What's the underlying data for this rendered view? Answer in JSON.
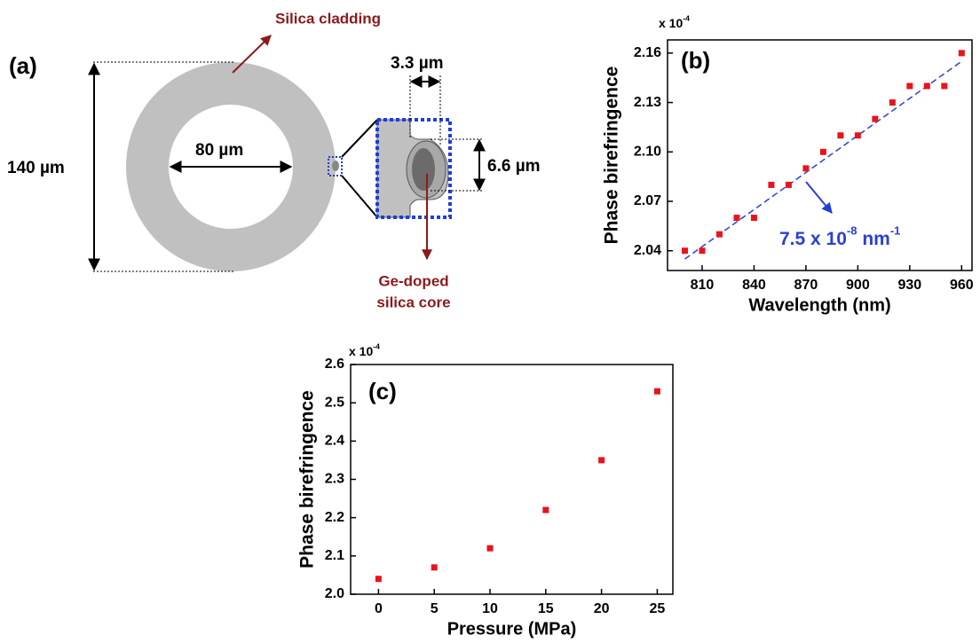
{
  "diagram": {
    "panel_label": "(a)",
    "cladding_label": "Silica cladding",
    "outer_diameter": "140 µm",
    "inner_diameter": "80 µm",
    "core_width": "3.3 µm",
    "core_height": "6.6 µm",
    "core_label": [
      "Ge-doped",
      "silica core"
    ]
  },
  "chart_data": [
    {
      "type": "scatter",
      "panel_label": "(b)",
      "y_label": "Phase birefringence",
      "x_label": "Wavelength (nm)",
      "y_multiplier": [
        "x 10",
        "-4"
      ],
      "x": [
        800,
        810,
        820,
        830,
        840,
        850,
        860,
        870,
        880,
        890,
        900,
        910,
        920,
        930,
        940,
        950,
        960
      ],
      "series": [
        {
          "color": "#e8141c",
          "values": [
            2.04,
            2.04,
            2.05,
            2.06,
            2.06,
            2.08,
            2.08,
            2.09,
            2.1,
            2.11,
            2.11,
            2.12,
            2.13,
            2.14,
            2.14,
            2.14,
            2.16
          ]
        }
      ],
      "fit": {
        "color": "#2a3fd8",
        "x": [
          800,
          960
        ],
        "y": [
          2.035,
          2.155
        ]
      },
      "annotation": [
        "7.5 x 10",
        "-8",
        " nm",
        "-1"
      ],
      "xlim": [
        790,
        966
      ],
      "ylim": [
        2.028,
        2.168
      ],
      "xticks": [
        810,
        840,
        870,
        900,
        930,
        960
      ],
      "yticks": [
        2.04,
        2.07,
        {
          "value": 2.1,
          "label": "2.10"
        },
        2.13,
        2.16
      ]
    },
    {
      "type": "scatter",
      "panel_label": "(c)",
      "y_label": "Phase birefringence",
      "x_label": "Pressure (MPa)",
      "y_multiplier": [
        "x 10",
        "-4"
      ],
      "x": [
        0,
        5,
        10,
        15,
        20,
        25
      ],
      "series": [
        {
          "color": "#e8141c",
          "values": [
            2.04,
            2.07,
            2.12,
            2.22,
            2.35,
            2.53
          ]
        }
      ],
      "xlim": [
        -2.5,
        26.4
      ],
      "ylim": [
        2.0,
        2.6
      ],
      "xticks": [
        0,
        5,
        10,
        15,
        20,
        25
      ],
      "yticks": [
        {
          "value": 2,
          "label": "2.0"
        },
        2.1,
        2.2,
        2.3,
        2.4,
        2.5,
        2.6
      ]
    }
  ]
}
